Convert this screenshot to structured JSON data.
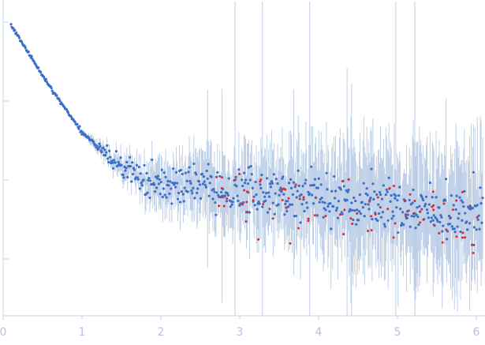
{
  "chart_data": {
    "type": "scatter",
    "title": "",
    "xlabel": "",
    "ylabel": "",
    "xlim": [
      0,
      6.1
    ],
    "ylim": [
      0,
      1
    ],
    "x_ticks": [
      {
        "value": 0,
        "label": "0"
      },
      {
        "value": 1,
        "label": "1"
      },
      {
        "value": 2,
        "label": "2"
      },
      {
        "value": 3,
        "label": "3"
      },
      {
        "value": 4,
        "label": "4"
      },
      {
        "value": 5,
        "label": "5"
      },
      {
        "value": 6,
        "label": "6"
      }
    ],
    "y_ticks": [
      0.18,
      0.43,
      0.68,
      0.93
    ],
    "grid": false,
    "legend": "none",
    "colors": {
      "axis": "#c5d0e8",
      "tick_label": "#b4c2e0",
      "error_bar": "#b8cbe6",
      "points": "#3d6fc4",
      "outliers": "#e0282e"
    },
    "trend_segments": [
      {
        "x": 0.1,
        "y": 0.92
      },
      {
        "x": 0.5,
        "y": 0.76
      },
      {
        "x": 1.0,
        "y": 0.58
      },
      {
        "x": 1.5,
        "y": 0.47
      },
      {
        "x": 1.8,
        "y": 0.43
      },
      {
        "x": 2.0,
        "y": 0.42
      },
      {
        "x": 3.0,
        "y": 0.4
      },
      {
        "x": 4.0,
        "y": 0.38
      },
      {
        "x": 5.0,
        "y": 0.35
      },
      {
        "x": 6.1,
        "y": 0.32
      }
    ],
    "series": [
      {
        "name": "",
        "color": "#3d6fc4",
        "point_count": 620
      },
      {
        "name": "",
        "color": "#e0282e",
        "point_count": 90
      }
    ]
  }
}
